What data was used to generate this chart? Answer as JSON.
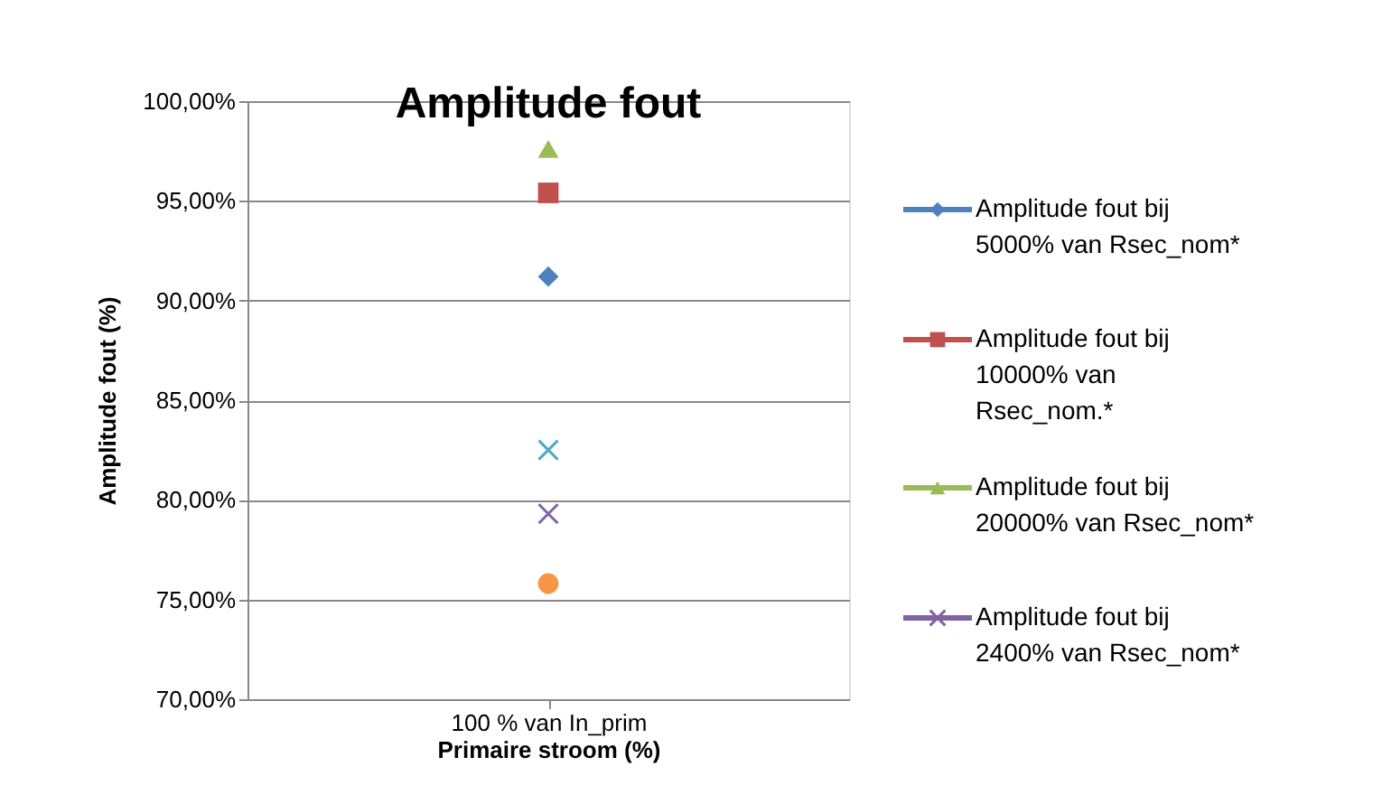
{
  "chart_data": {
    "type": "line",
    "title": "Amplitude fout",
    "xlabel": "Primaire stroom (%)",
    "ylabel": "Amplitude fout (%)",
    "categories": [
      "100 % van In_prim"
    ],
    "series": [
      {
        "name": "Amplitude fout bij 5000% van Rsec_nom*",
        "color": "#4f81bd",
        "marker": "diamond",
        "values": [
          91.2
        ]
      },
      {
        "name": "Amplitude fout bij 10000% van Rsec_nom.*",
        "color": "#c0504d",
        "marker": "square",
        "values": [
          95.4
        ]
      },
      {
        "name": "Amplitude fout bij 20000% van Rsec_nom*",
        "color": "#9bbb59",
        "marker": "triangle",
        "values": [
          97.6
        ]
      },
      {
        "name": "Amplitude fout bij 2400% van Rsec_nom*",
        "color": "#8064a2",
        "marker": "cross",
        "values": [
          79.3
        ]
      },
      {
        "color": "#4bacc6",
        "marker": "cross",
        "values": [
          82.5
        ]
      },
      {
        "color": "#f79646",
        "marker": "circle",
        "values": [
          75.8
        ]
      }
    ],
    "ylim": [
      70,
      100
    ],
    "yticks": [
      {
        "value": 70,
        "label": "70,00%"
      },
      {
        "value": 75,
        "label": "75,00%"
      },
      {
        "value": 80,
        "label": "80,00%"
      },
      {
        "value": 85,
        "label": "85,00%"
      },
      {
        "value": 90,
        "label": "90,00%"
      },
      {
        "value": 95,
        "label": "95,00%"
      },
      {
        "value": 100,
        "label": "100,00%"
      }
    ],
    "grid": "y",
    "legend": "right"
  }
}
